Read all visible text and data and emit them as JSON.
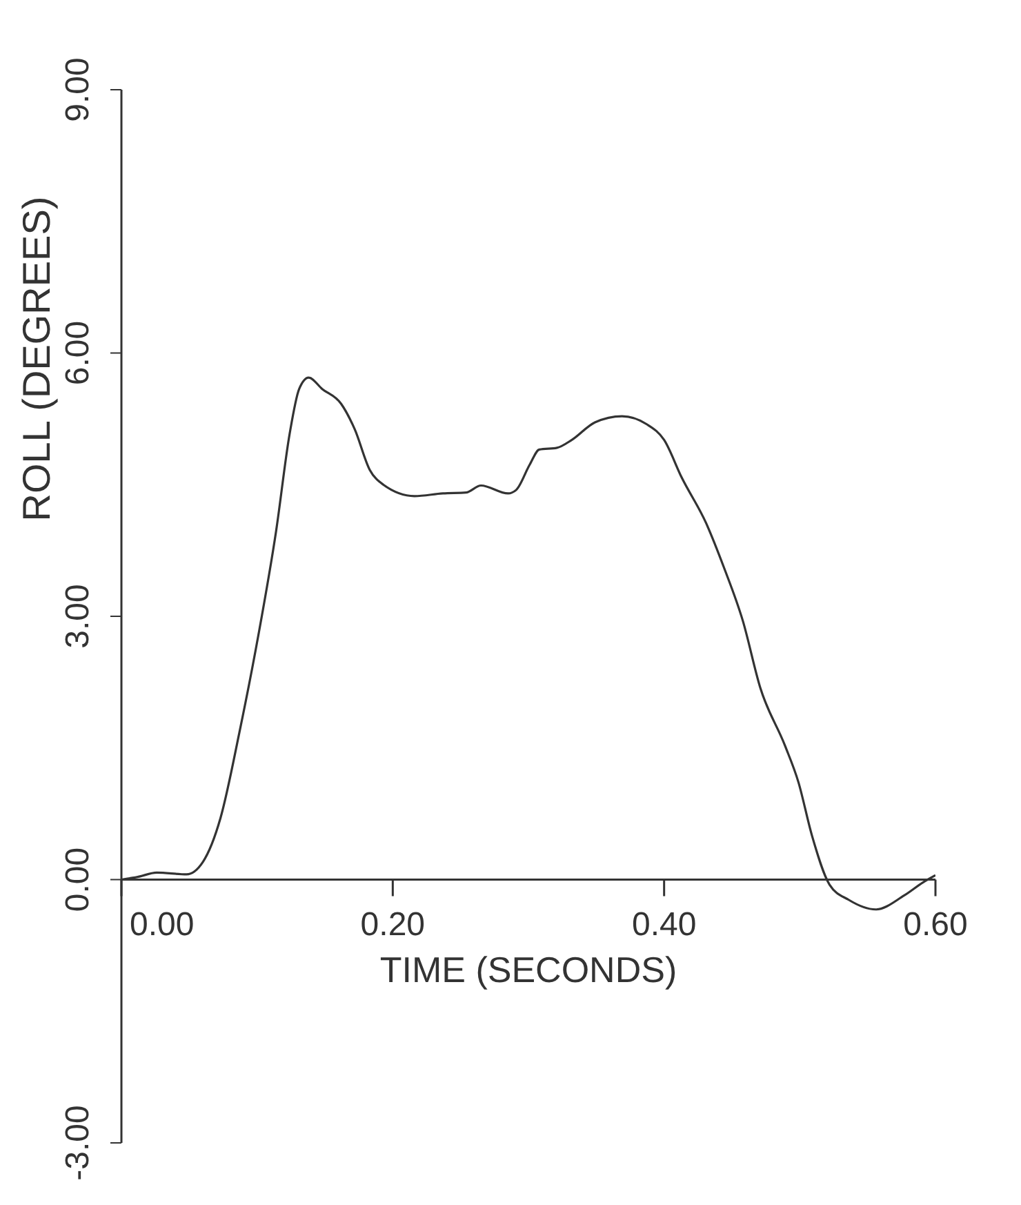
{
  "chart_data": {
    "type": "line",
    "xlabel": "TIME (SECONDS)",
    "ylabel": "ROLL (DEGREES)",
    "x": [
      0,
      0.012,
      0.026,
      0.048,
      0.06,
      0.073,
      0.087,
      0.101,
      0.114,
      0.124,
      0.131,
      0.138,
      0.148,
      0.162,
      0.172,
      0.183,
      0.193,
      0.216,
      0.237,
      0.254,
      0.265,
      0.285,
      0.291,
      0.301,
      0.308,
      0.321,
      0.332,
      0.349,
      0.369,
      0.387,
      0.4,
      0.413,
      0.431,
      0.444,
      0.458,
      0.471,
      0.489,
      0.499,
      0.509,
      0.522,
      0.536,
      0.556,
      0.577,
      0.591,
      0.6
    ],
    "series": [
      {
        "color": "#333333",
        "values": [
          0,
          0.03,
          0.08,
          0.06,
          0.2,
          0.7,
          1.68,
          2.79,
          3.97,
          5.08,
          5.59,
          5.72,
          5.59,
          5.42,
          5.13,
          4.67,
          4.5,
          4.37,
          4.4,
          4.41,
          4.49,
          4.4,
          4.44,
          4.73,
          4.9,
          4.92,
          5.01,
          5.21,
          5.28,
          5.19,
          5.01,
          4.58,
          4.06,
          3.56,
          2.95,
          2.18,
          1.53,
          1.11,
          0.5,
          -0.06,
          -0.23,
          -0.34,
          -0.18,
          -0.03,
          0.05
        ]
      }
    ],
    "xlim": [
      0,
      0.6
    ],
    "xticks": [
      {
        "value": 0,
        "label": "0.00"
      },
      {
        "value": 0.2,
        "label": "0.20"
      },
      {
        "value": 0.4,
        "label": "0.40"
      },
      {
        "value": 0.6,
        "label": "0.60"
      }
    ],
    "ylim": [
      -3,
      9
    ],
    "yticks": [
      {
        "value": -3,
        "label": "-3.00"
      },
      {
        "value": 0,
        "label": "0.00"
      },
      {
        "value": 3,
        "label": "3.00"
      },
      {
        "value": 6,
        "label": "6.00"
      },
      {
        "value": 9,
        "label": "9.00"
      }
    ],
    "grid": false,
    "legend": false,
    "marker": "none",
    "line_style": "solid"
  }
}
